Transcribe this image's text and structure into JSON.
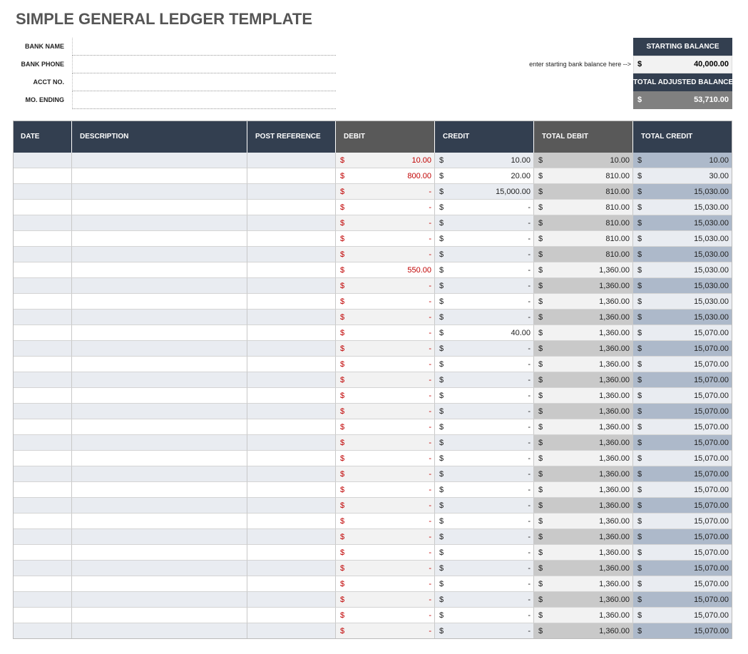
{
  "title": "SIMPLE GENERAL LEDGER TEMPLATE",
  "info_labels": [
    "BANK NAME",
    "BANK PHONE",
    "ACCT NO.",
    "MO. ENDING"
  ],
  "balance": {
    "starting_label": "STARTING BALANCE",
    "note": "enter starting bank balance here -->",
    "currency": "$",
    "starting_value": "40,000.00",
    "adjusted_label": "TOTAL ADJUSTED BALANCE",
    "adjusted_value": "53,710.00"
  },
  "table": {
    "headers": [
      "DATE",
      "DESCRIPTION",
      "POST REFERENCE",
      "DEBIT",
      "CREDIT",
      "TOTAL DEBIT",
      "TOTAL CREDIT"
    ],
    "rows": [
      [
        "10.00",
        "10.00",
        "10.00",
        "10.00"
      ],
      [
        "800.00",
        "20.00",
        "810.00",
        "30.00"
      ],
      [
        "-",
        "15,000.00",
        "810.00",
        "15,030.00"
      ],
      [
        "-",
        "-",
        "810.00",
        "15,030.00"
      ],
      [
        "-",
        "-",
        "810.00",
        "15,030.00"
      ],
      [
        "-",
        "-",
        "810.00",
        "15,030.00"
      ],
      [
        "-",
        "-",
        "810.00",
        "15,030.00"
      ],
      [
        "550.00",
        "-",
        "1,360.00",
        "15,030.00"
      ],
      [
        "-",
        "-",
        "1,360.00",
        "15,030.00"
      ],
      [
        "-",
        "-",
        "1,360.00",
        "15,030.00"
      ],
      [
        "-",
        "-",
        "1,360.00",
        "15,030.00"
      ],
      [
        "-",
        "40.00",
        "1,360.00",
        "15,070.00"
      ],
      [
        "-",
        "-",
        "1,360.00",
        "15,070.00"
      ],
      [
        "-",
        "-",
        "1,360.00",
        "15,070.00"
      ],
      [
        "-",
        "-",
        "1,360.00",
        "15,070.00"
      ],
      [
        "-",
        "-",
        "1,360.00",
        "15,070.00"
      ],
      [
        "-",
        "-",
        "1,360.00",
        "15,070.00"
      ],
      [
        "-",
        "-",
        "1,360.00",
        "15,070.00"
      ],
      [
        "-",
        "-",
        "1,360.00",
        "15,070.00"
      ],
      [
        "-",
        "-",
        "1,360.00",
        "15,070.00"
      ],
      [
        "-",
        "-",
        "1,360.00",
        "15,070.00"
      ],
      [
        "-",
        "-",
        "1,360.00",
        "15,070.00"
      ],
      [
        "-",
        "-",
        "1,360.00",
        "15,070.00"
      ],
      [
        "-",
        "-",
        "1,360.00",
        "15,070.00"
      ],
      [
        "-",
        "-",
        "1,360.00",
        "15,070.00"
      ],
      [
        "-",
        "-",
        "1,360.00",
        "15,070.00"
      ],
      [
        "-",
        "-",
        "1,360.00",
        "15,070.00"
      ],
      [
        "-",
        "-",
        "1,360.00",
        "15,070.00"
      ],
      [
        "-",
        "-",
        "1,360.00",
        "15,070.00"
      ],
      [
        "-",
        "-",
        "1,360.00",
        "15,070.00"
      ],
      [
        "-",
        "-",
        "1,360.00",
        "15,070.00"
      ]
    ]
  }
}
